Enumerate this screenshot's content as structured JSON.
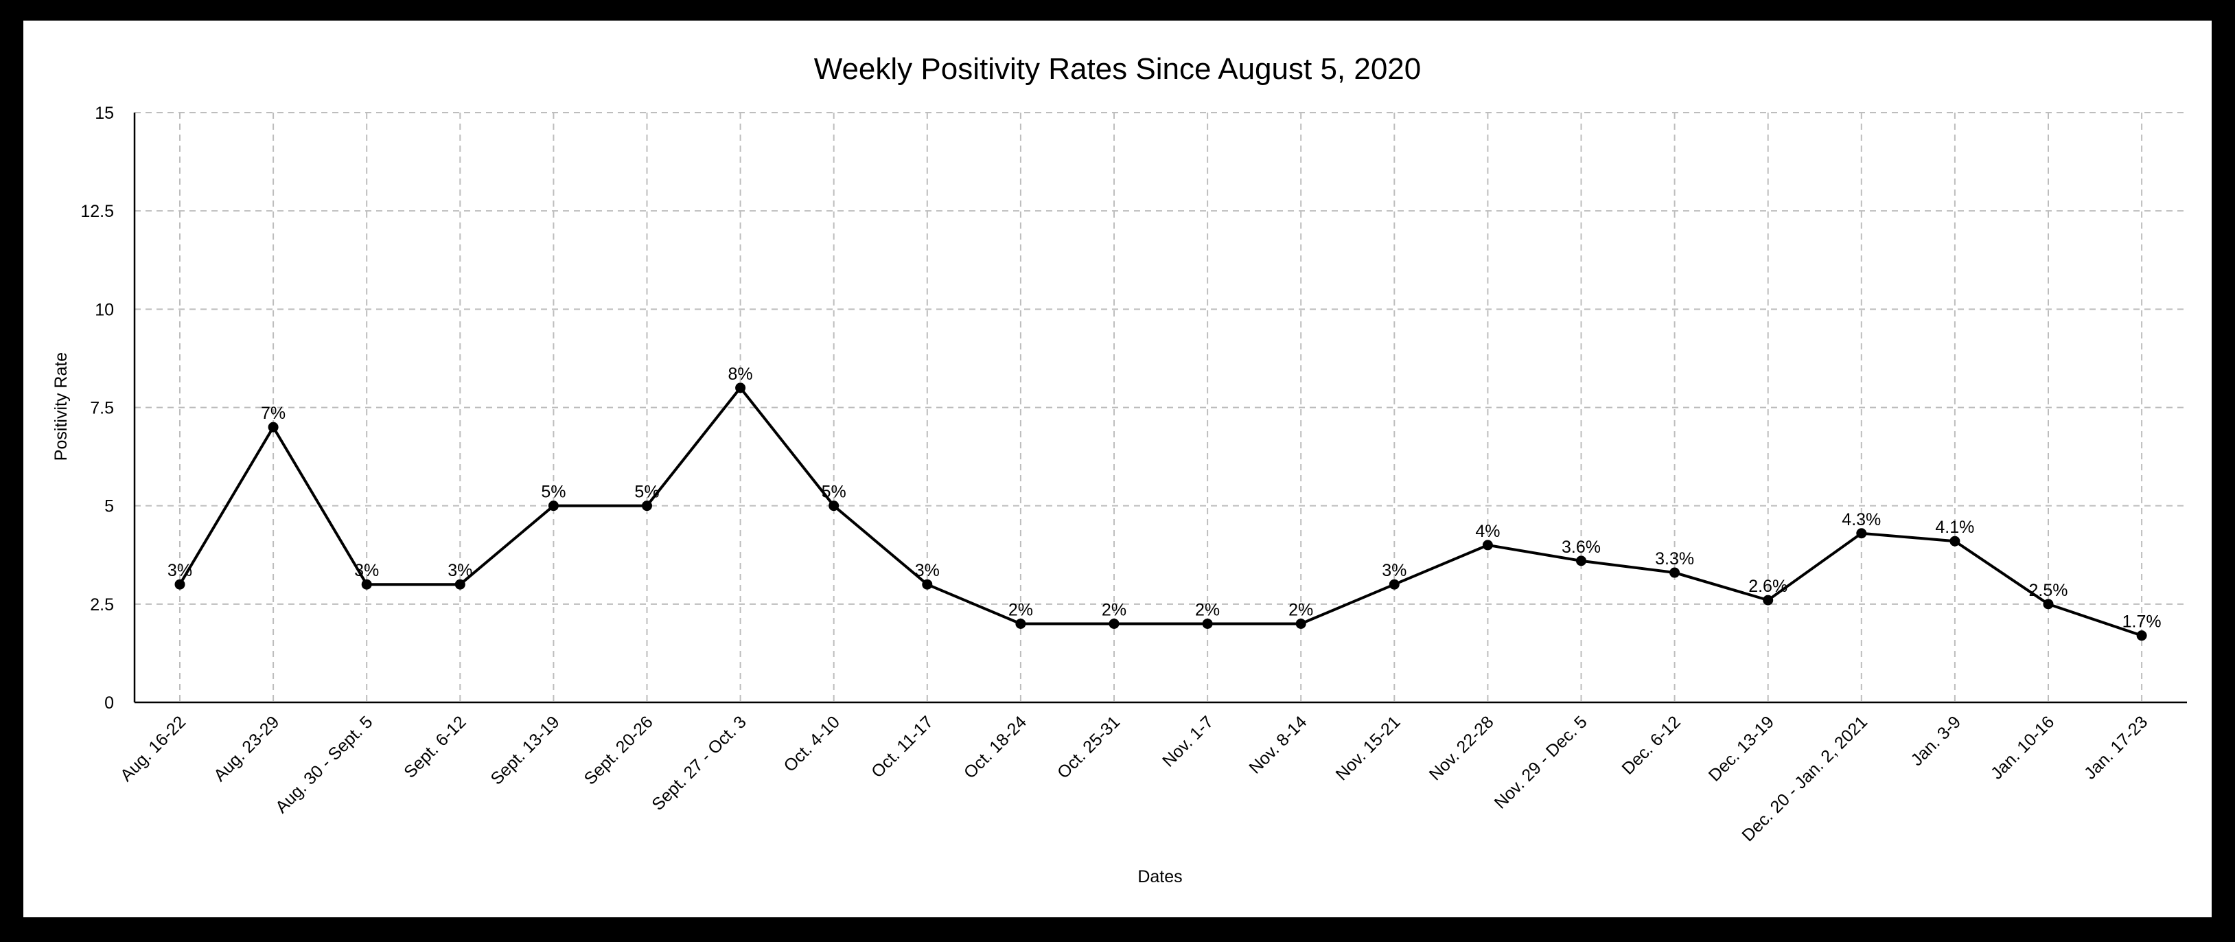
{
  "chart_data": {
    "type": "line",
    "title": "Weekly Positivity Rates Since August 5, 2020",
    "xlabel": "Dates",
    "ylabel": "Positivity Rate",
    "ylim": [
      0,
      15
    ],
    "yticks": [
      "0",
      "2.5",
      "5",
      "7.5",
      "10",
      "12.5",
      "15"
    ],
    "grid": true,
    "categories": [
      "Aug. 16-22",
      "Aug. 23-29",
      "Aug. 30 - Sept. 5",
      "Sept. 6-12",
      "Sept. 13-19",
      "Sept. 20-26",
      "Sept. 27 - Oct. 3",
      "Oct. 4-10",
      "Oct. 11-17",
      "Oct. 18-24",
      "Oct. 25-31",
      "Nov. 1-7",
      "Nov. 8-14",
      "Nov. 15-21",
      "Nov. 22-28",
      "Nov. 29 - Dec. 5",
      "Dec. 6-12",
      "Dec. 13-19",
      "Dec. 20 - Jan. 2, 2021",
      "Jan. 3-9",
      "Jan. 10-16",
      "Jan. 17-23"
    ],
    "values": [
      3,
      7,
      3,
      3,
      5,
      5,
      8,
      5,
      3,
      2,
      2,
      2,
      2,
      3,
      4,
      3.6,
      3.3,
      2.6,
      4.3,
      4.1,
      2.5,
      1.7
    ],
    "data_labels": [
      "3%",
      "7%",
      "3%",
      "3%",
      "5%",
      "5%",
      "8%",
      "5%",
      "3%",
      "2%",
      "2%",
      "2%",
      "2%",
      "3%",
      "4%",
      "3.6%",
      "3.3%",
      "2.6%",
      "4.3%",
      "4.1%",
      "2.5%",
      "1.7%"
    ],
    "colors": {
      "line": "#000000",
      "grid": "#bdbdbd",
      "border": "#000000"
    }
  }
}
